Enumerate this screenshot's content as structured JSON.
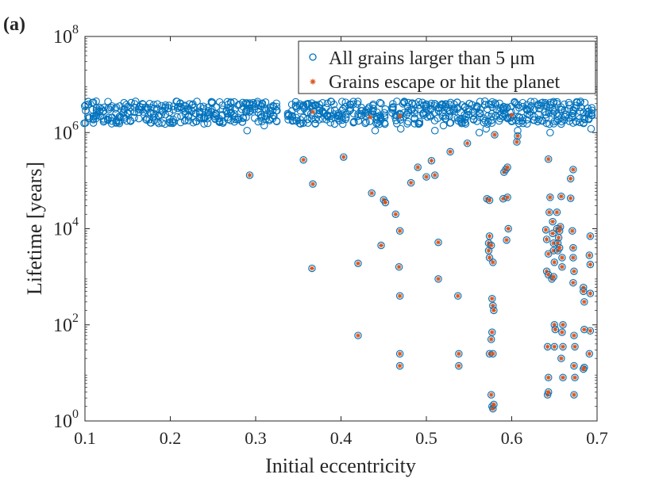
{
  "panel_label": "(a)",
  "colors": {
    "all_grains": "#0072BD",
    "escape_hit": "#D95319",
    "axis": "#262626"
  },
  "chart_data": {
    "type": "scatter",
    "xlabel": "Initial eccentricity",
    "ylabel": "Lifetime [years]",
    "xlim": [
      0.1,
      0.7
    ],
    "ylim": [
      1,
      100000000
    ],
    "yscale": "log",
    "xticks": [
      "0.1",
      "0.2",
      "0.3",
      "0.4",
      "0.5",
      "0.6",
      "0.7"
    ],
    "yticks": [
      {
        "base": "10",
        "exp": "0",
        "value": 1
      },
      {
        "base": "10",
        "exp": "2",
        "value": 100
      },
      {
        "base": "10",
        "exp": "4",
        "value": 10000
      },
      {
        "base": "10",
        "exp": "6",
        "value": 1000000
      },
      {
        "base": "10",
        "exp": "8",
        "value": 100000000
      }
    ],
    "legend": {
      "position": "top-right",
      "entries": [
        {
          "label": "All grains larger than 5 μm",
          "marker": "circle"
        },
        {
          "label": "Grains escape or hit the planet",
          "marker": "asterisk"
        }
      ]
    },
    "series": [
      {
        "name": "All grains larger than 5 μm",
        "dense_band": {
          "x_start": 0.1,
          "x_end": 0.695,
          "x_step": 0.0045,
          "y_min": 1500000,
          "y_max": 4500000,
          "gaps": [
            [
              0.327,
              0.335
            ],
            [
              0.453,
              0.46
            ]
          ]
        },
        "points": [
          [
            0.293,
            130000
          ],
          [
            0.356,
            270000
          ],
          [
            0.367,
            85000
          ],
          [
            0.366,
            1500
          ],
          [
            0.403,
            310000
          ],
          [
            0.42,
            1900
          ],
          [
            0.42,
            60
          ],
          [
            0.436,
            55000
          ],
          [
            0.447,
            4500
          ],
          [
            0.45,
            40000
          ],
          [
            0.452,
            35000
          ],
          [
            0.464,
            20000
          ],
          [
            0.469,
            9000
          ],
          [
            0.468,
            1600
          ],
          [
            0.469,
            400
          ],
          [
            0.469,
            25
          ],
          [
            0.469,
            14
          ],
          [
            0.482,
            90000
          ],
          [
            0.49,
            190000
          ],
          [
            0.5,
            120000
          ],
          [
            0.506,
            260000
          ],
          [
            0.51,
            130000
          ],
          [
            0.514,
            5200
          ],
          [
            0.514,
            900
          ],
          [
            0.528,
            400000
          ],
          [
            0.537,
            400
          ],
          [
            0.538,
            25
          ],
          [
            0.538,
            14
          ],
          [
            0.548,
            600000
          ],
          [
            0.562,
            1000000
          ],
          [
            0.571,
            42000
          ],
          [
            0.574,
            39000
          ],
          [
            0.573,
            5000
          ],
          [
            0.573,
            3500
          ],
          [
            0.574,
            2500
          ],
          [
            0.576,
            4500
          ],
          [
            0.578,
            2000
          ],
          [
            0.577,
            350
          ],
          [
            0.578,
            250
          ],
          [
            0.579,
            200
          ],
          [
            0.577,
            70
          ],
          [
            0.576,
            50
          ],
          [
            0.574,
            25
          ],
          [
            0.578,
            25
          ],
          [
            0.576,
            3.5
          ],
          [
            0.577,
            2
          ],
          [
            0.578,
            1.8
          ],
          [
            0.579,
            2.2
          ],
          [
            0.574,
            7000
          ],
          [
            0.58,
            900000
          ],
          [
            0.59,
            42000
          ],
          [
            0.591,
            150000
          ],
          [
            0.593,
            170000
          ],
          [
            0.595,
            190000
          ],
          [
            0.594,
            5800
          ],
          [
            0.595,
            45000
          ],
          [
            0.596,
            10000
          ],
          [
            0.607,
            1100000
          ],
          [
            0.607,
            850000
          ],
          [
            0.606,
            640000
          ],
          [
            0.643,
            280000
          ],
          [
            0.64,
            9500
          ],
          [
            0.641,
            6000
          ],
          [
            0.643,
            3000
          ],
          [
            0.641,
            1300
          ],
          [
            0.643,
            1100
          ],
          [
            0.644,
            22000
          ],
          [
            0.645,
            45000
          ],
          [
            0.642,
            35
          ],
          [
            0.643,
            8
          ],
          [
            0.642,
            3.5
          ],
          [
            0.643,
            4
          ],
          [
            0.647,
            900
          ],
          [
            0.648,
            14000
          ],
          [
            0.648,
            8000
          ],
          [
            0.649,
            5000
          ],
          [
            0.649,
            3500
          ],
          [
            0.65,
            2000
          ],
          [
            0.649,
            1000
          ],
          [
            0.65,
            100
          ],
          [
            0.651,
            80
          ],
          [
            0.65,
            35
          ],
          [
            0.653,
            22000
          ],
          [
            0.653,
            10000
          ],
          [
            0.654,
            5000
          ],
          [
            0.654,
            3500
          ],
          [
            0.655,
            6500
          ],
          [
            0.656,
            4000
          ],
          [
            0.657,
            11000
          ],
          [
            0.656,
            9000
          ],
          [
            0.658,
            47000
          ],
          [
            0.659,
            2500
          ],
          [
            0.659,
            1600
          ],
          [
            0.66,
            100
          ],
          [
            0.659,
            70
          ],
          [
            0.66,
            35
          ],
          [
            0.658,
            20
          ],
          [
            0.66,
            8
          ],
          [
            0.669,
            110000
          ],
          [
            0.669,
            43000
          ],
          [
            0.671,
            9000
          ],
          [
            0.672,
            4000
          ],
          [
            0.672,
            2500
          ],
          [
            0.673,
            1300
          ],
          [
            0.672,
            750
          ],
          [
            0.673,
            60
          ],
          [
            0.674,
            35
          ],
          [
            0.673,
            14
          ],
          [
            0.674,
            8
          ],
          [
            0.673,
            3.5
          ],
          [
            0.672,
            170000
          ],
          [
            0.684,
            600
          ],
          [
            0.684,
            500
          ],
          [
            0.685,
            300
          ],
          [
            0.685,
            80
          ],
          [
            0.685,
            13
          ],
          [
            0.684,
            12
          ],
          [
            0.692,
            7000
          ],
          [
            0.691,
            2800
          ],
          [
            0.692,
            1800
          ],
          [
            0.692,
            450
          ],
          [
            0.692,
            75
          ],
          [
            0.691,
            25
          ],
          [
            0.693,
            1200000
          ],
          [
            0.6,
            1700000
          ],
          [
            0.645,
            1000000
          ],
          [
            0.51,
            1100000
          ],
          [
            0.52,
            1400000
          ],
          [
            0.57,
            1200000
          ],
          [
            0.44,
            1100000
          ],
          [
            0.445,
            1500000
          ],
          [
            0.47,
            1200000
          ],
          [
            0.31,
            1400000
          ],
          [
            0.29,
            1100000
          ]
        ]
      },
      {
        "name": "Grains escape or hit the planet",
        "points_ref": "same as above excluding dense band",
        "extra_points": [
          [
            0.367,
            2700000
          ],
          [
            0.434,
            2100000
          ],
          [
            0.469,
            2200000
          ],
          [
            0.6,
            2300000
          ]
        ]
      }
    ]
  }
}
